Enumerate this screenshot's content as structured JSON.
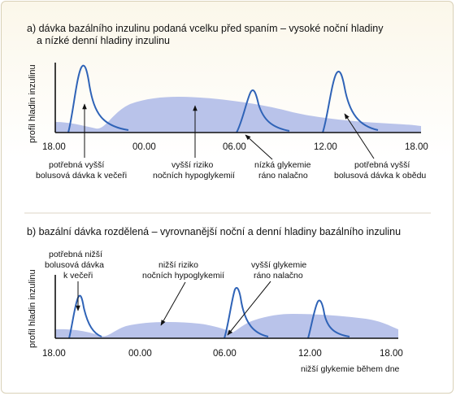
{
  "panel_a": {
    "title_line1": "a) dávka bazálního inzulinu podaná vcelku před spaním – vysoké noční hladiny",
    "title_line2": "a nízké denní hladiny inzulinu",
    "y_label": "profil hladin inzulinu",
    "ticks": [
      "18.00",
      "00.00",
      "06.00",
      "12.00",
      "18.00"
    ],
    "annotations": {
      "evening_bolus": [
        "potřebná vyšší",
        "bolusová dávka k večeři"
      ],
      "night_risk": [
        "vyšší riziko",
        "nočních hypoglykemií"
      ],
      "morning_glyc": [
        "nízká glykemie",
        "ráno nalačno"
      ],
      "noon_bolus": [
        "potřebná vyšší",
        "bolusová dávka k obědu"
      ]
    }
  },
  "panel_b": {
    "title": "b) bazální dávka rozdělená – vyrovnanější noční a denní hladiny bazálního inzulinu",
    "y_label": "profil hladin inzulinu",
    "ticks": [
      "18.00",
      "00.00",
      "06.00",
      "12.00",
      "18.00"
    ],
    "annotations": {
      "evening_bolus": [
        "potřebná nižší",
        "bolusová dávka",
        "k večeři"
      ],
      "night_risk": [
        "nižší riziko",
        "nočních hypoglykemií"
      ],
      "morning_glyc": [
        "vyšší glykemie",
        "ráno nalačno"
      ],
      "day_note": "nižší glykemie během dne"
    }
  },
  "colors": {
    "basal_fill": "#b9c3ea",
    "bolus_line": "#2f63b7",
    "frame_border": "#d9d1b8"
  }
}
